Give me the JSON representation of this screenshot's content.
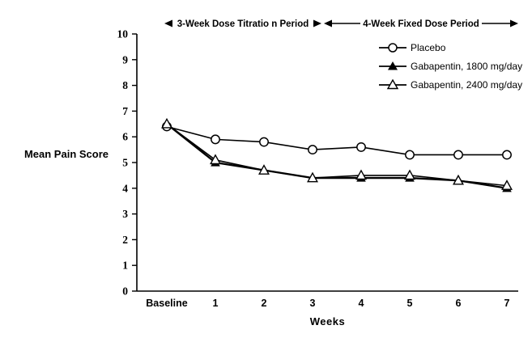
{
  "chart_data": {
    "type": "line",
    "categories": [
      "Baseline",
      "1",
      "2",
      "3",
      "4",
      "5",
      "6",
      "7"
    ],
    "series": [
      {
        "name": "Placebo",
        "marker": "open-circle",
        "values": [
          6.4,
          5.9,
          5.8,
          5.5,
          5.6,
          5.3,
          5.3,
          5.3
        ]
      },
      {
        "name": "Gabapentin, 1800 mg/day",
        "marker": "filled-triangle",
        "values": [
          6.5,
          5.0,
          4.7,
          4.4,
          4.4,
          4.4,
          4.3,
          4.0
        ]
      },
      {
        "name": "Gabapentin, 2400 mg/day",
        "marker": "open-triangle",
        "values": [
          6.5,
          5.1,
          4.7,
          4.4,
          4.5,
          4.5,
          4.3,
          4.1
        ]
      }
    ],
    "title": "",
    "xlabel": "Weeks",
    "ylabel": "Mean Pain Score",
    "ylim": [
      0,
      10
    ],
    "yticks": [
      0,
      1,
      2,
      3,
      4,
      5,
      6,
      7,
      8,
      9,
      10
    ],
    "grid": false,
    "legend_position": "top-right",
    "annotations": [
      {
        "label": "3-Week Dose Titratio n Period"
      },
      {
        "label": "4-Week Fixed Dose Period"
      }
    ],
    "line_color": "#000000",
    "background_color": "#ffffff"
  }
}
